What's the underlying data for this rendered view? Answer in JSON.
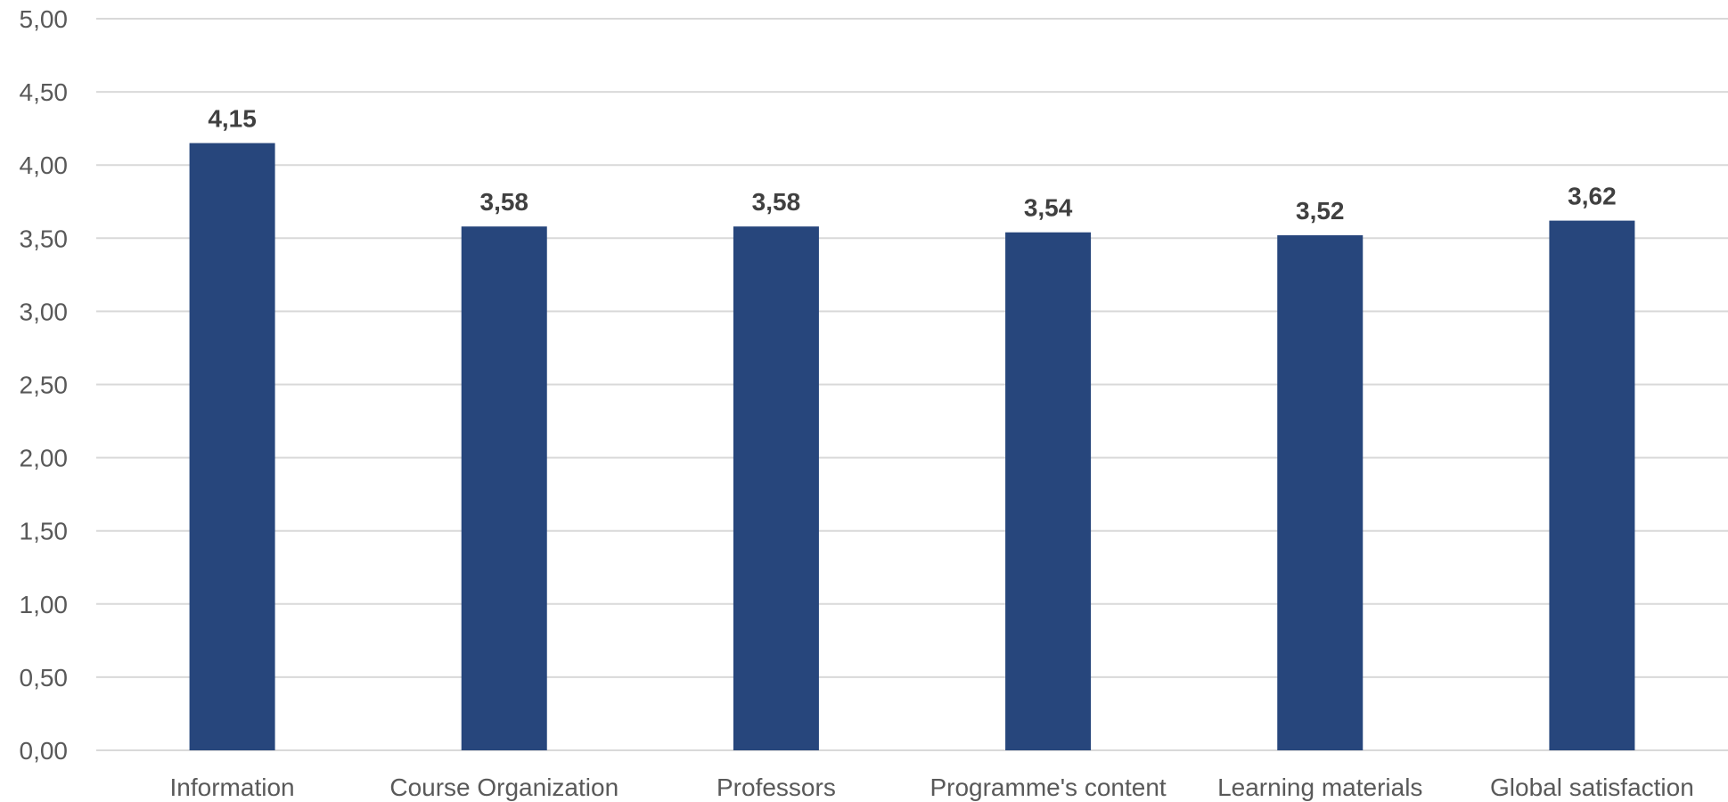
{
  "chart_data": {
    "type": "bar",
    "title": "",
    "xlabel": "",
    "ylabel": "",
    "categories": [
      "Information",
      "Course Organization",
      "Professors",
      "Programme's content",
      "Learning materials",
      "Global satisfaction"
    ],
    "values": [
      4.15,
      3.58,
      3.58,
      3.54,
      3.52,
      3.62
    ],
    "data_labels": [
      "4,15",
      "3,58",
      "3,58",
      "3,54",
      "3,52",
      "3,62"
    ],
    "ylim": [
      0,
      5
    ],
    "yticks": [
      "0,00",
      "0,50",
      "1,00",
      "1,50",
      "2,00",
      "2,50",
      "3,00",
      "3,50",
      "4,00",
      "4,50",
      "5,00"
    ],
    "grid": true,
    "legend": "none",
    "colors": {
      "bar": "#27467C",
      "grid": "#D9D9D9",
      "tick_text": "#595959",
      "label_text": "#404040"
    }
  }
}
